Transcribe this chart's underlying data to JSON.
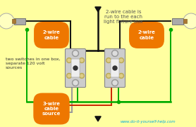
{
  "bg_color": "#FFFFA0",
  "title_text": "2-wire cable is\nrun to the each\nlight fixture box",
  "left_label": "2-wire\ncable",
  "right_label": "2-wire\ncable",
  "bottom_label": "3-wire\ncable\nsource",
  "left_note": "two switches in one box,\nseparate 120 volt\nsources",
  "website": "www.do-it-yourself-help.com",
  "label_bg": "#EE7700",
  "label_fg": "#FFFFFF",
  "col_black": "#111111",
  "col_red": "#CC2200",
  "col_green": "#00AA00",
  "col_white": "#BBBBBB",
  "col_gray": "#999999",
  "col_switch_body": "#CCCCCC",
  "col_switch_edge": "#888888",
  "col_screw": "#BBAA55",
  "col_bulb": "#FFFFC0",
  "col_fixture": "#AAAAAA",
  "col_website": "#00AADD"
}
